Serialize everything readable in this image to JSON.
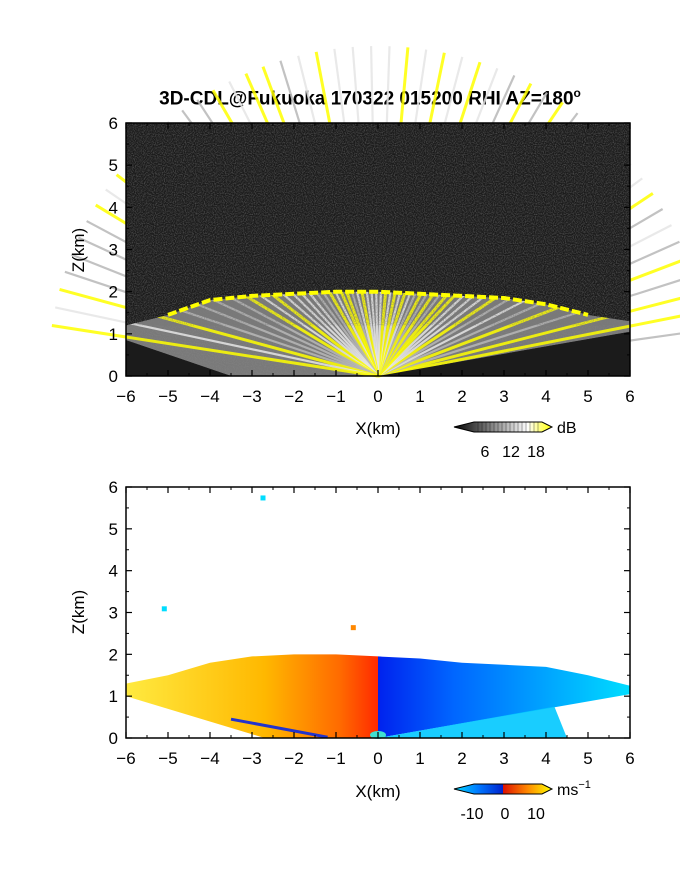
{
  "title_main": "3D-CDL@Fukuoka 170322 015200 RHI AZ=180",
  "title_sup": "o",
  "chart_data": [
    {
      "type": "heatmap",
      "name": "reflectivity",
      "xlabel": "X(km)",
      "ylabel": "Z(km)",
      "xlim": [
        -6,
        6
      ],
      "ylim": [
        0,
        6
      ],
      "xticks": [
        -6,
        -5,
        -4,
        -3,
        -2,
        -1,
        0,
        1,
        2,
        3,
        4,
        5,
        6
      ],
      "yticks": [
        0,
        1,
        2,
        3,
        4,
        5,
        6
      ],
      "colorbar": {
        "unit": "dB",
        "ticks": [
          6,
          12,
          18
        ],
        "colors": [
          "#000000",
          "#ffffff",
          "#ffff00"
        ]
      },
      "echo_top": [
        [
          -6,
          1.2
        ],
        [
          -5,
          1.45
        ],
        [
          -4,
          1.8
        ],
        [
          -3,
          1.9
        ],
        [
          -2,
          1.95
        ],
        [
          -1,
          2.0
        ],
        [
          0,
          2.0
        ],
        [
          1,
          1.95
        ],
        [
          2,
          1.9
        ],
        [
          3,
          1.85
        ],
        [
          4,
          1.7
        ],
        [
          5,
          1.45
        ],
        [
          6,
          1.3
        ]
      ]
    },
    {
      "type": "heatmap",
      "name": "radial-velocity",
      "xlabel": "X(km)",
      "ylabel": "Z(km)",
      "xlim": [
        -6,
        6
      ],
      "ylim": [
        0,
        6
      ],
      "xticks": [
        -6,
        -5,
        -4,
        -3,
        -2,
        -1,
        0,
        1,
        2,
        3,
        4,
        5,
        6
      ],
      "yticks": [
        0,
        1,
        2,
        3,
        4,
        5,
        6
      ],
      "colorbar": {
        "unit": "ms",
        "unit_sup": "−1",
        "ticks": [
          -10,
          0,
          10
        ],
        "colors": [
          "#00ddff",
          "#0044ff",
          "#ff2200",
          "#ffff00"
        ]
      },
      "echo_top": [
        [
          -6,
          1.3
        ],
        [
          -5,
          1.5
        ],
        [
          -4,
          1.8
        ],
        [
          -3,
          1.95
        ],
        [
          -2,
          2.0
        ],
        [
          -1,
          2.0
        ],
        [
          0,
          1.95
        ],
        [
          1,
          1.9
        ],
        [
          2,
          1.8
        ],
        [
          3,
          1.75
        ],
        [
          4,
          1.7
        ],
        [
          5,
          1.5
        ],
        [
          6,
          1.25
        ]
      ]
    }
  ]
}
